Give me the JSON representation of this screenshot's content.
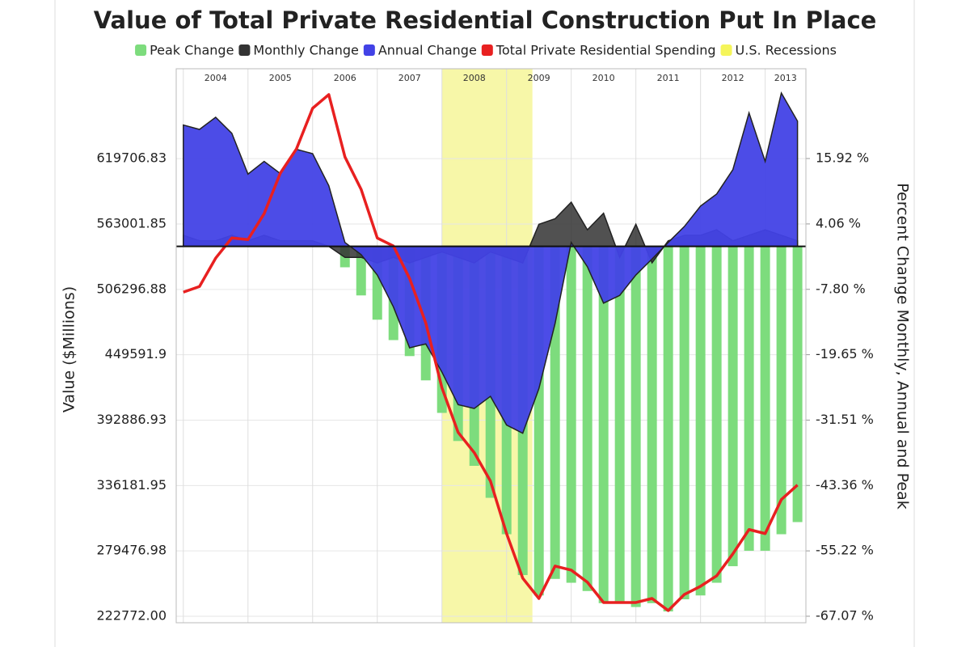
{
  "chart_data": {
    "type": "combo",
    "title": "Value of Total Private Residential Construction Put In Place",
    "y_label": "Value ($Millions)",
    "y2_label": "Percent Change Monthly, Annual and Peak",
    "xlim": [
      2003.89,
      2013.63
    ],
    "xticks": [
      2004,
      2005,
      2006,
      2007,
      2008,
      2009,
      2010,
      2011,
      2012,
      2013
    ],
    "ylim": [
      217151,
      697700
    ],
    "yticks": [
      {
        "value": 222772,
        "label": "222772.00"
      },
      279476.98,
      336181.95,
      392886.93,
      449591.9,
      506296.88,
      563001.85,
      619706.83
    ],
    "y2lim": [
      -68.25,
      32.2
    ],
    "y2ticks": [
      {
        "value": -67.07,
        "label": "-67.07 %"
      },
      {
        "value": -55.22,
        "label": "-55.22 %"
      },
      {
        "value": -43.36,
        "label": "-43.36 %"
      },
      {
        "value": -31.51,
        "label": "-31.51 %"
      },
      {
        "value": -19.65,
        "label": "-19.65 %"
      },
      {
        "value": -7.8,
        "label": "-7.80 %"
      },
      {
        "value": 4.06,
        "label": "4.06 %"
      },
      {
        "value": 15.92,
        "label": "15.92 %"
      }
    ],
    "grid": true,
    "legend": "top",
    "x": [
      2004,
      2004.25,
      2004.5,
      2004.75,
      2005,
      2005.25,
      2005.5,
      2005.75,
      2006,
      2006.25,
      2006.5,
      2006.75,
      2007,
      2007.25,
      2007.5,
      2007.75,
      2008,
      2008.25,
      2008.5,
      2008.75,
      2009,
      2009.25,
      2009.5,
      2009.75,
      2010,
      2010.25,
      2010.5,
      2010.75,
      2011,
      2011.25,
      2011.5,
      2011.75,
      2012,
      2012.25,
      2012.5,
      2012.75,
      2013,
      2013.25,
      2013.5
    ],
    "series": [
      {
        "name": "Peak Change",
        "type": "bar",
        "axis": "y2",
        "color": "#7ddc7d",
        "values": [
          0,
          0,
          0,
          0,
          0,
          0,
          0,
          0,
          0,
          0,
          -3.8,
          -8.9,
          -13.3,
          -17,
          -19.9,
          -24.3,
          -30.2,
          -35.3,
          -39.8,
          -45.6,
          -52.2,
          -59.6,
          -63.3,
          -60.3,
          -61,
          -62.5,
          -64.7,
          -64.7,
          -65.4,
          -64.7,
          -66.2,
          -64,
          -63.3,
          -61,
          -58,
          -55.2,
          -55.2,
          -52.2,
          -50
        ]
      },
      {
        "name": "Monthly Change",
        "type": "area",
        "axis": "y2",
        "color": "#333333",
        "values": [
          2,
          1,
          1,
          2,
          1,
          2,
          1,
          1,
          1,
          0,
          -2,
          -2,
          -3,
          -2,
          -3,
          -2,
          -1,
          -2,
          -3,
          -1,
          -2,
          -3,
          4,
          5,
          8,
          3,
          6,
          -2,
          4,
          -3,
          1,
          2,
          2,
          3,
          1,
          2,
          3,
          2,
          1
        ]
      },
      {
        "name": "Annual Change",
        "type": "area",
        "axis": "y2",
        "color": "#4242e6",
        "values": [
          22,
          21.2,
          23.4,
          20.5,
          13.1,
          15.4,
          13.2,
          17.6,
          16.8,
          11,
          0.7,
          -1.5,
          -5.2,
          -11,
          -18.4,
          -17.7,
          -22.8,
          -28.7,
          -29.4,
          -27.2,
          -32.4,
          -33.9,
          -25.8,
          -14,
          0.7,
          -3.7,
          -10.3,
          -8.9,
          -5.2,
          -2.3,
          0.7,
          3.6,
          7.3,
          9.5,
          13.9,
          24.2,
          15.4,
          27.8,
          22.7
        ]
      },
      {
        "name": "Total Private Residential Spending",
        "type": "line",
        "color": "#e82020",
        "values": [
          503900,
          508800,
          533400,
          550900,
          549500,
          572000,
          607100,
          628200,
          663400,
          675300,
          621200,
          593100,
          550900,
          543900,
          515800,
          477200,
          421000,
          382300,
          364700,
          340100,
          294500,
          255800,
          238200,
          266300,
          262800,
          252300,
          234700,
          234700,
          234700,
          238200,
          227700,
          241700,
          248800,
          257900,
          276900,
          298000,
          294500,
          324000,
          336600
        ]
      }
    ],
    "recession": {
      "name": "U.S. Recessions",
      "color": "#f7f7a8",
      "x": [
        2008.0,
        2009.4
      ]
    }
  }
}
